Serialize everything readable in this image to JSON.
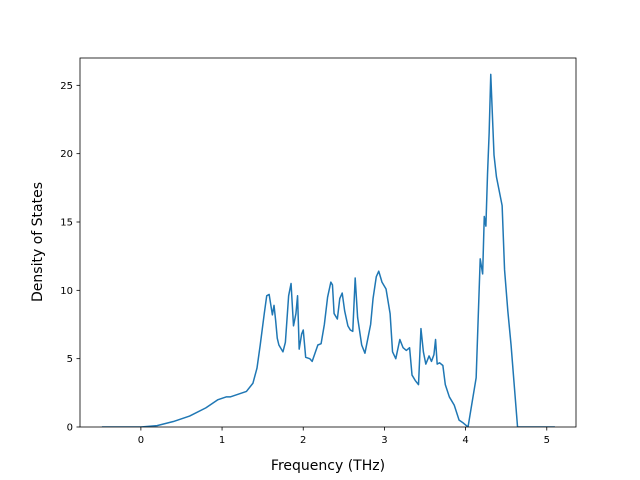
{
  "chart_data": {
    "type": "line",
    "title": "",
    "xlabel": "Frequency (THz)",
    "ylabel": "Density of States",
    "xlim": [
      -0.75,
      5.36
    ],
    "ylim": [
      0,
      27
    ],
    "xticks": [
      0,
      1,
      2,
      3,
      4,
      5
    ],
    "yticks": [
      0,
      5,
      10,
      15,
      20,
      25
    ],
    "grid": false,
    "legend": "none",
    "series_color": "#1f77b4",
    "series": [
      {
        "x": [
          -0.48,
          0.0,
          0.2,
          0.4,
          0.6,
          0.8,
          0.95,
          1.05,
          1.1,
          1.15,
          1.2,
          1.3,
          1.38,
          1.43,
          1.47,
          1.52,
          1.55,
          1.58,
          1.62,
          1.64,
          1.66,
          1.68,
          1.7,
          1.75,
          1.78,
          1.82,
          1.85,
          1.88,
          1.91,
          1.93,
          1.95,
          1.98,
          2.0,
          2.03,
          2.08,
          2.11,
          2.18,
          2.22,
          2.26,
          2.3,
          2.34,
          2.36,
          2.38,
          2.42,
          2.45,
          2.48,
          2.51,
          2.55,
          2.58,
          2.61,
          2.64,
          2.67,
          2.72,
          2.76,
          2.8,
          2.83,
          2.86,
          2.9,
          2.93,
          2.97,
          3.02,
          3.07,
          3.1,
          3.14,
          3.19,
          3.23,
          3.27,
          3.31,
          3.34,
          3.38,
          3.42,
          3.45,
          3.48,
          3.51,
          3.55,
          3.58,
          3.61,
          3.63,
          3.65,
          3.68,
          3.72,
          3.75,
          3.8,
          3.86,
          3.92,
          3.97,
          4.03,
          4.08,
          4.13,
          4.18,
          4.21,
          4.23,
          4.25,
          4.27,
          4.29,
          4.31,
          4.35,
          4.38,
          4.45,
          4.48,
          4.52,
          4.56,
          4.6,
          4.64,
          4.7,
          4.8,
          5.1
        ],
        "y": [
          0,
          0,
          0.1,
          0.4,
          0.8,
          1.4,
          2.0,
          2.2,
          2.2,
          2.3,
          2.4,
          2.6,
          3.2,
          4.3,
          6.0,
          8.3,
          9.6,
          9.7,
          8.2,
          8.9,
          7.8,
          6.5,
          6.0,
          5.5,
          6.2,
          9.6,
          10.5,
          7.4,
          8.3,
          9.6,
          5.7,
          6.8,
          7.1,
          5.1,
          5.0,
          4.8,
          6.0,
          6.1,
          7.5,
          9.5,
          10.6,
          10.4,
          8.3,
          7.9,
          9.4,
          9.8,
          8.5,
          7.4,
          7.1,
          7.0,
          10.9,
          8.0,
          6.0,
          5.4,
          6.6,
          7.5,
          9.4,
          11.0,
          11.4,
          10.6,
          10.1,
          8.3,
          5.5,
          5.0,
          6.4,
          5.8,
          5.6,
          5.8,
          3.8,
          3.4,
          3.1,
          7.2,
          5.5,
          4.6,
          5.2,
          4.8,
          5.3,
          6.4,
          4.6,
          4.7,
          4.5,
          3.1,
          2.2,
          1.6,
          0.5,
          0.3,
          0.0,
          1.8,
          3.6,
          12.3,
          11.2,
          15.4,
          14.7,
          18.5,
          21.5,
          25.8,
          19.9,
          18.3,
          16.2,
          11.5,
          8.5,
          6.0,
          3.0,
          0.0,
          0.0,
          0.0,
          0.0
        ]
      }
    ]
  }
}
